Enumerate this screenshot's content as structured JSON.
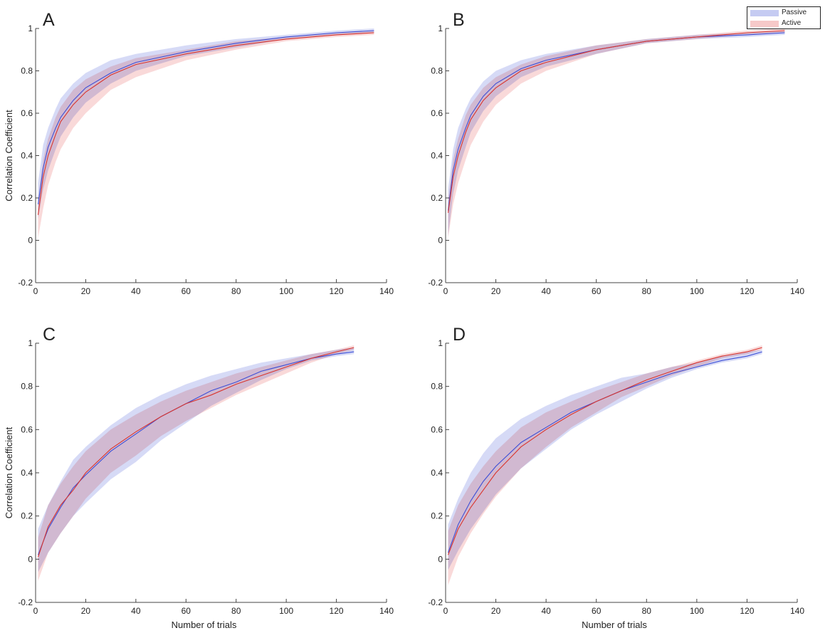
{
  "figure": {
    "colors": {
      "passive_line": "#3d4fd6",
      "passive_band": "#c5cbf2",
      "active_line": "#d9352e",
      "active_band": "#f6c9c9",
      "overlap_band": "#a390c0",
      "axis": "#444444",
      "text": "#222222"
    }
  },
  "legend": {
    "passive": "Passive",
    "active": "Active"
  },
  "chart_data": [
    {
      "panel": "A",
      "type": "line",
      "xlabel": "",
      "ylabel": "Correlation Coefficient",
      "xlim": [
        0,
        140
      ],
      "ylim": [
        -0.2,
        1
      ],
      "xticks": [
        0,
        20,
        40,
        60,
        80,
        100,
        120,
        140
      ],
      "xtick_labels": [
        "0",
        "20",
        "40",
        "60",
        "80",
        "100",
        "120",
        "140"
      ],
      "yticks": [
        -0.2,
        0,
        0.2,
        0.4,
        0.6,
        0.8,
        1
      ],
      "ytick_labels": [
        "-0.2",
        "0",
        "0.2",
        "0.4",
        "0.6",
        "0.8",
        "1"
      ],
      "series": [
        {
          "name": "Passive",
          "x": [
            1,
            3,
            5,
            8,
            10,
            15,
            20,
            30,
            40,
            60,
            80,
            100,
            120,
            135
          ],
          "mean": [
            0.17,
            0.34,
            0.44,
            0.53,
            0.58,
            0.66,
            0.72,
            0.79,
            0.84,
            0.89,
            0.93,
            0.96,
            0.98,
            0.99
          ],
          "lower": [
            0.1,
            0.24,
            0.33,
            0.43,
            0.49,
            0.58,
            0.65,
            0.74,
            0.8,
            0.87,
            0.91,
            0.95,
            0.97,
            0.98
          ],
          "upper": [
            0.27,
            0.45,
            0.53,
            0.62,
            0.67,
            0.74,
            0.79,
            0.85,
            0.88,
            0.92,
            0.95,
            0.97,
            0.99,
            1.0
          ]
        },
        {
          "name": "Active",
          "x": [
            1,
            3,
            5,
            8,
            10,
            15,
            20,
            30,
            40,
            60,
            80,
            100,
            120,
            135
          ],
          "mean": [
            0.12,
            0.3,
            0.4,
            0.5,
            0.56,
            0.64,
            0.7,
            0.78,
            0.83,
            0.88,
            0.92,
            0.95,
            0.97,
            0.98
          ],
          "lower": [
            0.01,
            0.15,
            0.26,
            0.37,
            0.43,
            0.53,
            0.6,
            0.71,
            0.77,
            0.85,
            0.9,
            0.94,
            0.96,
            0.97
          ],
          "upper": [
            0.19,
            0.38,
            0.48,
            0.58,
            0.63,
            0.71,
            0.76,
            0.82,
            0.86,
            0.9,
            0.94,
            0.96,
            0.98,
            0.99
          ]
        }
      ]
    },
    {
      "panel": "B",
      "type": "line",
      "xlabel": "",
      "ylabel": "",
      "xlim": [
        0,
        140
      ],
      "ylim": [
        -0.2,
        1
      ],
      "xticks": [
        0,
        20,
        40,
        60,
        80,
        100,
        120,
        140
      ],
      "xtick_labels": [
        "0",
        "20",
        "40",
        "60",
        "80",
        "100",
        "120",
        "140"
      ],
      "yticks": [
        -0.2,
        0,
        0.2,
        0.4,
        0.6,
        0.8,
        1
      ],
      "ytick_labels": [
        "-0.2",
        "0",
        "0.2",
        "0.4",
        "0.6",
        "0.8",
        "1"
      ],
      "series": [
        {
          "name": "Passive",
          "x": [
            1,
            3,
            5,
            8,
            10,
            15,
            20,
            30,
            40,
            60,
            80,
            100,
            120,
            135
          ],
          "mean": [
            0.14,
            0.33,
            0.43,
            0.53,
            0.59,
            0.68,
            0.74,
            0.81,
            0.85,
            0.9,
            0.94,
            0.96,
            0.97,
            0.98
          ],
          "lower": [
            0.02,
            0.22,
            0.33,
            0.44,
            0.51,
            0.61,
            0.68,
            0.77,
            0.82,
            0.88,
            0.93,
            0.95,
            0.96,
            0.97
          ],
          "upper": [
            0.24,
            0.43,
            0.53,
            0.62,
            0.67,
            0.75,
            0.8,
            0.85,
            0.88,
            0.92,
            0.95,
            0.97,
            0.98,
            0.99
          ]
        },
        {
          "name": "Active",
          "x": [
            1,
            3,
            5,
            8,
            10,
            15,
            20,
            30,
            40,
            60,
            80,
            100,
            120,
            135
          ],
          "mean": [
            0.13,
            0.3,
            0.4,
            0.51,
            0.57,
            0.66,
            0.72,
            0.8,
            0.84,
            0.9,
            0.94,
            0.96,
            0.98,
            0.99
          ],
          "lower": [
            0.01,
            0.17,
            0.27,
            0.38,
            0.45,
            0.56,
            0.64,
            0.74,
            0.8,
            0.88,
            0.93,
            0.95,
            0.97,
            0.98
          ],
          "upper": [
            0.19,
            0.38,
            0.48,
            0.59,
            0.64,
            0.72,
            0.77,
            0.83,
            0.87,
            0.92,
            0.95,
            0.97,
            0.99,
            1.0
          ]
        }
      ]
    },
    {
      "panel": "C",
      "type": "line",
      "xlabel": "Number of trials",
      "ylabel": "Correlation Coefficient",
      "xlim": [
        0,
        140
      ],
      "ylim": [
        -0.2,
        1
      ],
      "xticks": [
        0,
        20,
        40,
        60,
        80,
        100,
        120,
        140
      ],
      "xtick_labels": [
        "0",
        "20",
        "40",
        "60",
        "80",
        "100",
        "120",
        "140"
      ],
      "yticks": [
        -0.2,
        0,
        0.2,
        0.4,
        0.6,
        0.8,
        1
      ],
      "ytick_labels": [
        "-0.2",
        "0",
        "0.2",
        "0.4",
        "0.6",
        "0.8",
        "1"
      ],
      "series": [
        {
          "name": "Passive",
          "x": [
            1,
            5,
            10,
            15,
            20,
            30,
            40,
            50,
            60,
            70,
            80,
            90,
            100,
            110,
            120,
            127
          ],
          "mean": [
            0.02,
            0.14,
            0.24,
            0.33,
            0.39,
            0.5,
            0.58,
            0.66,
            0.72,
            0.78,
            0.82,
            0.87,
            0.9,
            0.93,
            0.95,
            0.96
          ],
          "lower": [
            -0.06,
            0.03,
            0.12,
            0.2,
            0.26,
            0.37,
            0.45,
            0.55,
            0.63,
            0.71,
            0.77,
            0.83,
            0.88,
            0.92,
            0.94,
            0.95
          ],
          "upper": [
            0.14,
            0.25,
            0.36,
            0.46,
            0.52,
            0.62,
            0.7,
            0.76,
            0.81,
            0.85,
            0.88,
            0.91,
            0.93,
            0.95,
            0.97,
            0.98
          ]
        },
        {
          "name": "Active",
          "x": [
            1,
            5,
            10,
            15,
            20,
            30,
            40,
            50,
            60,
            70,
            80,
            90,
            100,
            110,
            120,
            127
          ],
          "mean": [
            0.01,
            0.15,
            0.25,
            0.32,
            0.4,
            0.51,
            0.59,
            0.66,
            0.72,
            0.76,
            0.81,
            0.85,
            0.89,
            0.93,
            0.96,
            0.98
          ],
          "lower": [
            -0.1,
            0.03,
            0.12,
            0.2,
            0.28,
            0.4,
            0.48,
            0.57,
            0.64,
            0.7,
            0.76,
            0.81,
            0.86,
            0.91,
            0.95,
            0.97
          ],
          "upper": [
            0.1,
            0.25,
            0.35,
            0.43,
            0.5,
            0.6,
            0.67,
            0.73,
            0.78,
            0.82,
            0.86,
            0.89,
            0.92,
            0.95,
            0.97,
            0.99
          ]
        }
      ]
    },
    {
      "panel": "D",
      "type": "line",
      "xlabel": "Number of trials",
      "ylabel": "",
      "xlim": [
        0,
        140
      ],
      "ylim": [
        -0.2,
        1
      ],
      "xticks": [
        0,
        20,
        40,
        60,
        80,
        100,
        120,
        140
      ],
      "xtick_labels": [
        "0",
        "20",
        "40",
        "60",
        "80",
        "100",
        "120",
        "140"
      ],
      "yticks": [
        -0.2,
        0,
        0.2,
        0.4,
        0.6,
        0.8,
        1
      ],
      "ytick_labels": [
        "-0.2",
        "0",
        "0.2",
        "0.4",
        "0.6",
        "0.8",
        "1"
      ],
      "series": [
        {
          "name": "Passive",
          "x": [
            1,
            5,
            10,
            15,
            20,
            30,
            40,
            50,
            60,
            70,
            80,
            90,
            100,
            110,
            120,
            126
          ],
          "mean": [
            0.03,
            0.16,
            0.27,
            0.36,
            0.43,
            0.54,
            0.61,
            0.68,
            0.73,
            0.78,
            0.82,
            0.86,
            0.89,
            0.92,
            0.94,
            0.96
          ],
          "lower": [
            -0.05,
            0.04,
            0.14,
            0.22,
            0.3,
            0.42,
            0.51,
            0.6,
            0.67,
            0.73,
            0.79,
            0.84,
            0.88,
            0.91,
            0.93,
            0.95
          ],
          "upper": [
            0.16,
            0.28,
            0.4,
            0.49,
            0.56,
            0.65,
            0.71,
            0.76,
            0.8,
            0.84,
            0.86,
            0.89,
            0.91,
            0.94,
            0.96,
            0.97
          ]
        },
        {
          "name": "Active",
          "x": [
            1,
            5,
            10,
            15,
            20,
            30,
            40,
            50,
            60,
            70,
            80,
            90,
            100,
            110,
            120,
            126
          ],
          "mean": [
            0.02,
            0.14,
            0.24,
            0.32,
            0.4,
            0.52,
            0.6,
            0.67,
            0.73,
            0.78,
            0.83,
            0.87,
            0.91,
            0.94,
            0.96,
            0.98
          ],
          "lower": [
            -0.12,
            0.01,
            0.12,
            0.21,
            0.29,
            0.42,
            0.52,
            0.61,
            0.68,
            0.75,
            0.8,
            0.85,
            0.89,
            0.93,
            0.95,
            0.97
          ],
          "upper": [
            0.13,
            0.25,
            0.35,
            0.43,
            0.5,
            0.61,
            0.68,
            0.73,
            0.78,
            0.82,
            0.86,
            0.89,
            0.92,
            0.95,
            0.97,
            0.99
          ]
        }
      ]
    }
  ]
}
